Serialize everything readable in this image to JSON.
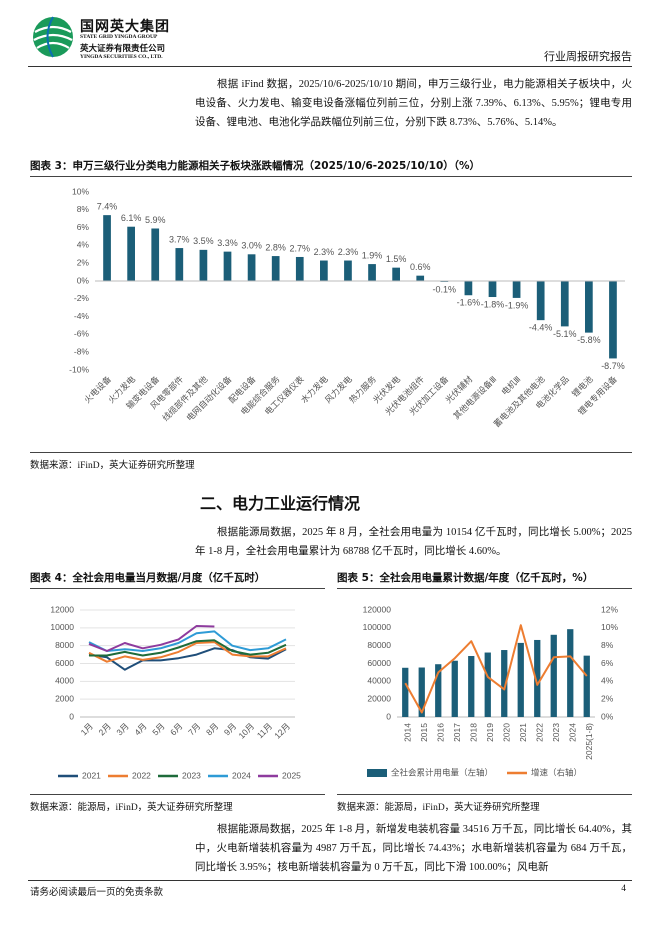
{
  "header": {
    "company_cn": "国网英大集团",
    "company_en": "STATE GRID YINGDA GROUP",
    "subsidiary_cn": "英大证券有限责任公司",
    "subsidiary_en": "YINGDA SECURITIES CO., LTD.",
    "report_type": "行业周报研究报告"
  },
  "paragraphs": [
    "根据 iFind 数据，2025/10/6-2025/10/10 期间，申万三级行业，电力能源相关子板块中，火电设备、火力发电、输变电设备涨幅位列前三位，分别上涨 7.39%、6.13%、5.95%；锂电专用设备、锂电池、电池化学品跌幅位列前三位，分别下跌 8.73%、5.76%、5.14%。",
    "根据能源局数据，2025 年 8 月，全社会用电量为 10154 亿千瓦时，同比增长 5.00%；2025 年 1-8 月，全社会用电量累计为 68788 亿千瓦时，同比增长 4.60%。",
    "根据能源局数据，2025 年 1-8 月，新增发电装机容量 34516 万千瓦，同比增长 64.40%，其中，火电新增装机容量为 4987 万千瓦，同比增长 74.43%；水电新增装机容量为 684 万千瓦，同比增长 3.95%；核电新增装机容量为 0 万千瓦，同比下滑 100.00%；风电新"
  ],
  "section_title": "二、电力工业运行情况",
  "footer": {
    "disclaimer": "请务必阅读最后一页的免责条款",
    "page_number": 4
  },
  "chart_data": [
    {
      "type": "bar",
      "title": "图表 3：申万三级行业分类电力能源相关子板块涨跌幅情况（2025/10/6-2025/10/10）（%）",
      "source": "数据来源：iFinD，英大证券研究所整理",
      "categories": [
        "火电设备",
        "火力发电",
        "输变电设备",
        "风电零部件",
        "线缆部件及其他",
        "电网自动化设备",
        "配电设备",
        "电能综合服务",
        "电工仪器仪表",
        "水力发电",
        "风力发电",
        "热力服务",
        "光伏发电",
        "光伏电池组件",
        "光伏加工设备",
        "光伏辅材",
        "其他电源设备Ⅲ",
        "电机Ⅲ",
        "蓄电池及其他电池",
        "电池化学品",
        "锂电池",
        "锂电专用设备"
      ],
      "values": [
        7.4,
        6.1,
        5.9,
        3.7,
        3.5,
        3.3,
        3.0,
        2.8,
        2.7,
        2.3,
        2.3,
        1.9,
        1.5,
        0.6,
        -0.1,
        -1.6,
        -1.8,
        -1.9,
        -4.4,
        -5.1,
        -5.8,
        -8.7
      ],
      "value_labels": [
        "7.4%",
        "6.1%",
        "5.9%",
        "3.7%",
        "3.5%",
        "3.3%",
        "3.0%",
        "2.8%",
        "2.7%",
        "2.3%",
        "2.3%",
        "1.9%",
        "1.5%",
        "0.6%",
        "-0.1%",
        "-1.6%",
        "-1.8%",
        "-1.9%",
        "-4.4%",
        "-5.1%",
        "-5.8%",
        "-8.7%"
      ],
      "color": "#1b5e78",
      "ylim": [
        -10,
        10
      ],
      "yticks": [
        {
          "value": 10,
          "label": "10%"
        },
        {
          "value": 8,
          "label": "8%"
        },
        {
          "value": 6,
          "label": "6%"
        },
        {
          "value": 4,
          "label": "4%"
        },
        {
          "value": 2,
          "label": "2%"
        },
        {
          "value": 0,
          "label": "0%"
        },
        {
          "value": -2,
          "label": "-2%"
        },
        {
          "value": -4,
          "label": "-4%"
        },
        {
          "value": -6,
          "label": "-6%"
        },
        {
          "value": -8,
          "label": "-8%"
        },
        {
          "value": -10,
          "label": "-10%"
        }
      ],
      "grid": false
    },
    {
      "type": "line",
      "title": "图表 4：全社会用电量当月数据/月度（亿千瓦时）",
      "source": "数据来源：能源局，iFinD，英大证券研究所整理",
      "categories": [
        "1月",
        "2月",
        "3月",
        "4月",
        "5月",
        "6月",
        "7月",
        "8月",
        "9月",
        "10月",
        "11月",
        "12月"
      ],
      "series": [
        {
          "name": "2021",
          "color": "#1f4e79",
          "values": [
            7000,
            6700,
            5300,
            6350,
            6350,
            6600,
            7000,
            7700,
            7500,
            6700,
            6550,
            7600
          ]
        },
        {
          "name": "2022",
          "color": "#ed7d31",
          "values": [
            7200,
            6200,
            6800,
            6400,
            6700,
            7300,
            8300,
            8400,
            7000,
            6800,
            6800,
            7700
          ]
        },
        {
          "name": "2023",
          "color": "#1e6b3a",
          "values": [
            6900,
            6900,
            7300,
            6900,
            7200,
            7800,
            8500,
            8600,
            7400,
            7000,
            7200,
            8100
          ]
        },
        {
          "name": "2024",
          "color": "#2e9bd6",
          "values": [
            8400,
            7400,
            7600,
            7400,
            7700,
            8300,
            9400,
            9600,
            8000,
            7500,
            7700,
            8700
          ]
        },
        {
          "name": "2025",
          "color": "#8e3b9e",
          "values": [
            8200,
            7400,
            8300,
            7700,
            8100,
            8700,
            10200,
            10150,
            null,
            null,
            null,
            null
          ]
        }
      ],
      "ylim": [
        0,
        12000
      ],
      "yticks": [
        0,
        2000,
        4000,
        6000,
        8000,
        10000,
        12000
      ],
      "grid": true
    },
    {
      "type": "combo",
      "title": "图表 5：全社会用电量累计数据/年度（亿千瓦时，%）",
      "source": "数据来源：能源局，iFinD，英大证券研究所整理",
      "categories": [
        "2014",
        "2015",
        "2016",
        "2017",
        "2018",
        "2019",
        "2020",
        "2021",
        "2022",
        "2023",
        "2024",
        "2025(1-8)"
      ],
      "series": [
        {
          "name": "全社会累计用电量（左轴）",
          "color": "#1b5e78",
          "axis": "y",
          "values": [
            55200,
            55500,
            59200,
            63100,
            68400,
            72300,
            75100,
            83100,
            86400,
            92200,
            98500,
            68800
          ]
        },
        {
          "name": "增速（右轴）",
          "color": "#ed7d31",
          "axis": "y2",
          "values": [
            3.8,
            0.5,
            5.0,
            6.6,
            8.5,
            4.5,
            3.1,
            10.3,
            3.6,
            6.7,
            6.8,
            4.6
          ]
        }
      ],
      "ylim": [
        0,
        120000
      ],
      "yticks": [
        0,
        20000,
        40000,
        60000,
        80000,
        100000,
        120000
      ],
      "y2lim": [
        0,
        12
      ],
      "y2ticks": [
        {
          "value": 0,
          "label": "0%"
        },
        {
          "value": 2,
          "label": "2%"
        },
        {
          "value": 4,
          "label": "4%"
        },
        {
          "value": 6,
          "label": "6%"
        },
        {
          "value": 8,
          "label": "8%"
        },
        {
          "value": 10,
          "label": "10%"
        },
        {
          "value": 12,
          "label": "12%"
        }
      ],
      "grid": false
    }
  ]
}
